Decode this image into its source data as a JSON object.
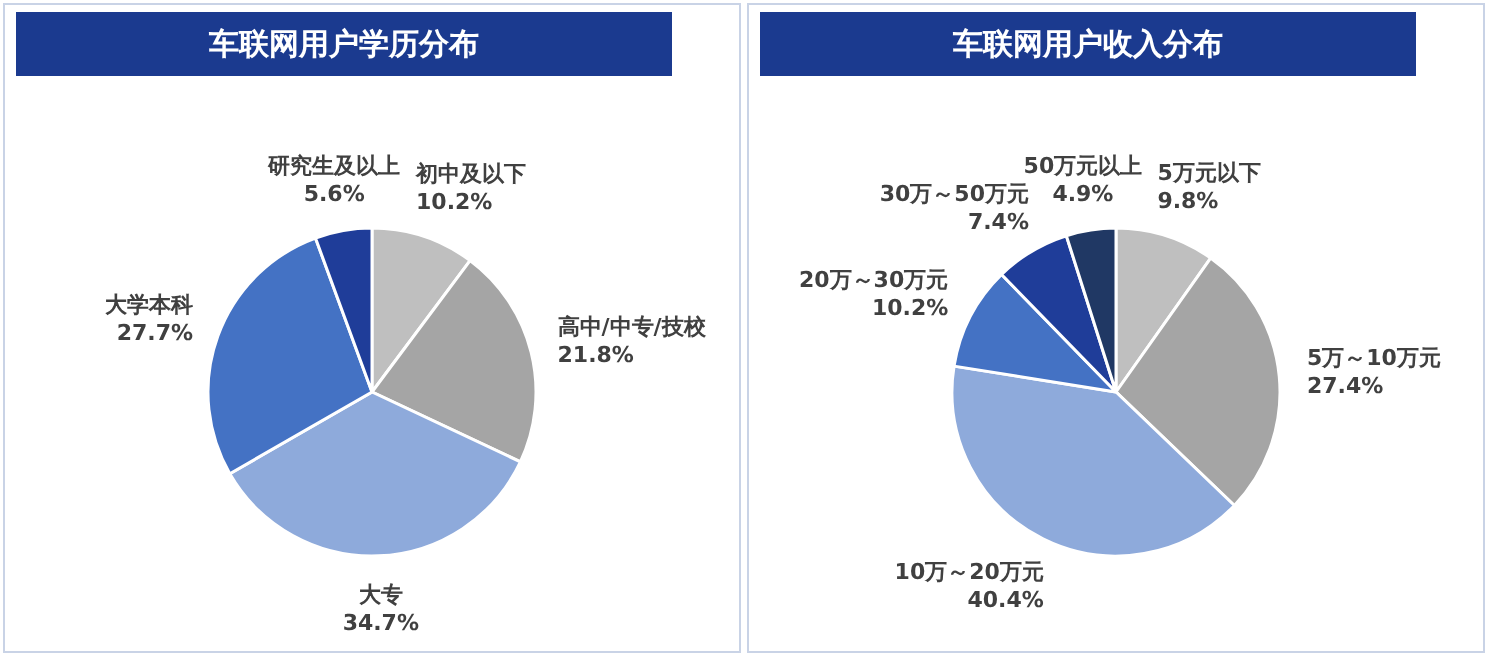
{
  "chart_data": [
    {
      "type": "pie",
      "title": "车联网用户学历分布",
      "categories": [
        "初中及以下",
        "高中/中专/技校",
        "大专",
        "大学本科",
        "研究生及以上"
      ],
      "values": [
        10.2,
        21.8,
        34.7,
        27.7,
        5.6
      ],
      "value_labels": [
        "10.2%",
        "21.8%",
        "34.7%",
        "27.7%",
        "5.6%"
      ],
      "colors": [
        "#bfbfbf",
        "#a5a5a5",
        "#8eaadb",
        "#4472c4",
        "#1f3d99"
      ]
    },
    {
      "type": "pie",
      "title": "车联网用户收入分布",
      "categories": [
        "5万元以下",
        "5万～10万元",
        "10万～20万元",
        "20万～30万元",
        "30万～50万元",
        "50万元以上"
      ],
      "values": [
        9.8,
        27.4,
        40.4,
        10.2,
        7.4,
        4.9
      ],
      "value_labels": [
        "9.8%",
        "27.4%",
        "40.4%",
        "10.2%",
        "7.4%",
        "4.9%"
      ],
      "colors": [
        "#bfbfbf",
        "#a5a5a5",
        "#8eaadb",
        "#4472c4",
        "#1f3d99",
        "#203864"
      ]
    }
  ]
}
